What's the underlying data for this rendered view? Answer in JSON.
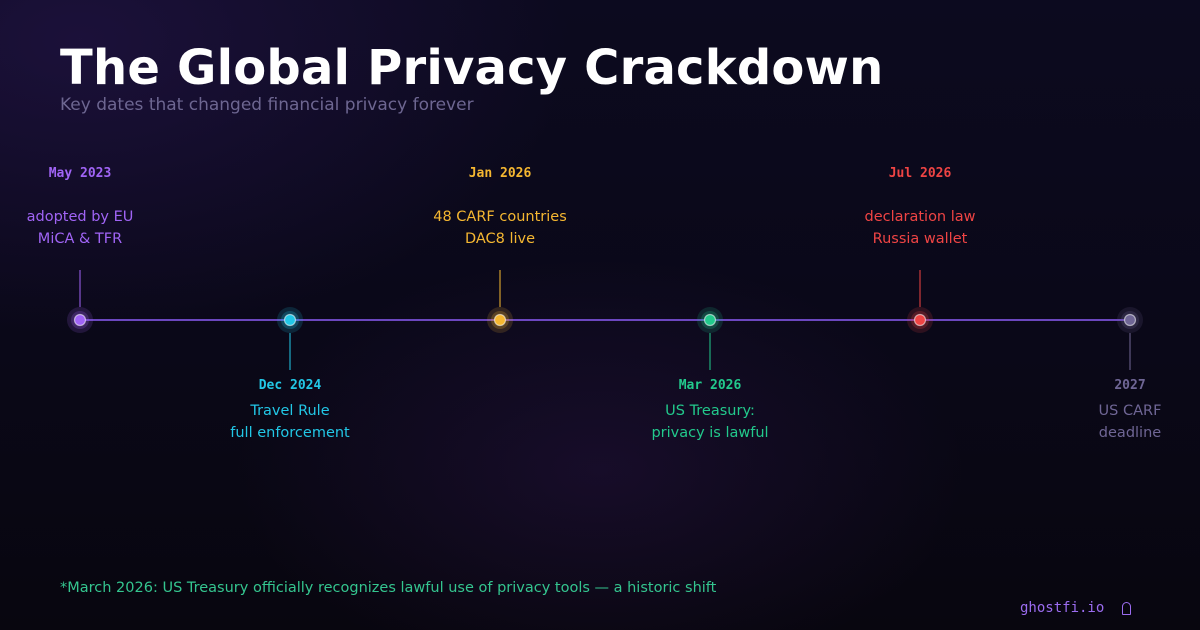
{
  "header": {
    "title": "The Global Privacy Crackdown",
    "subtitle": "Key dates that changed financial privacy forever"
  },
  "timeline": {
    "axis_color": "#8b5cf6",
    "events": [
      {
        "date": "May 2023",
        "lines": [
          "adopted by EU",
          "MiCA & TFR"
        ],
        "color": "#a064f5",
        "side": "above"
      },
      {
        "date": "Dec 2024",
        "lines": [
          "Travel Rule",
          "full enforcement"
        ],
        "color": "#22c7e6",
        "side": "below"
      },
      {
        "date": "Jan 2026",
        "lines": [
          "48 CARF countries",
          "DAC8 live"
        ],
        "color": "#f5b731",
        "side": "above"
      },
      {
        "date": "Mar 2026",
        "lines": [
          "US Treasury:",
          "privacy is lawful"
        ],
        "color": "#22c98c",
        "side": "below"
      },
      {
        "date": "Jul 2026",
        "lines": [
          "declaration law",
          "Russia wallet"
        ],
        "color": "#ef4444",
        "side": "above"
      },
      {
        "date": "2027",
        "lines": [
          "US CARF",
          "deadline"
        ],
        "color": "#6f6695",
        "side": "below"
      }
    ]
  },
  "footer": {
    "note": "*March 2026: US Treasury officially recognizes lawful use of privacy tools — a historic shift",
    "brand": "ghostfi.io",
    "brand_icon": "ghost-icon"
  }
}
